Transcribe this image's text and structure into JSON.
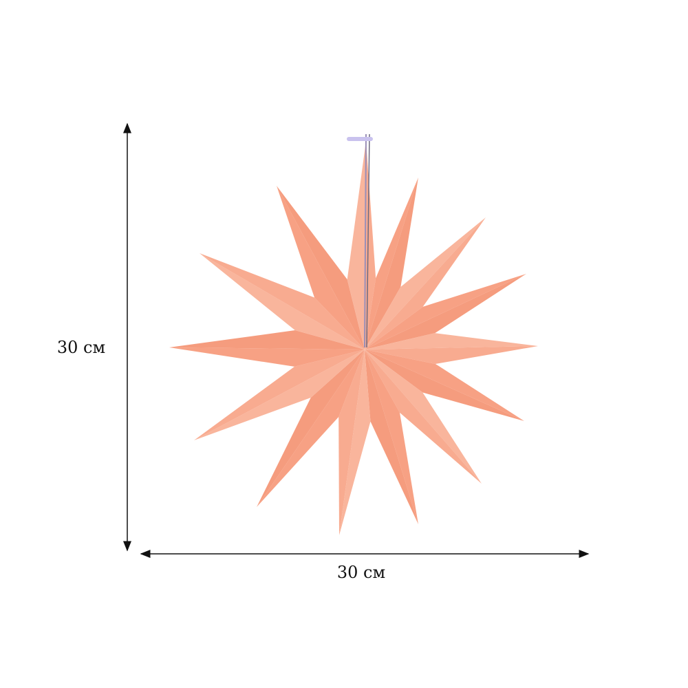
{
  "product": {
    "name": "paper-star-ornament",
    "color": "#f7a184",
    "points": 14
  },
  "dimensions": {
    "height_label": "30 см",
    "width_label": "30 см"
  }
}
